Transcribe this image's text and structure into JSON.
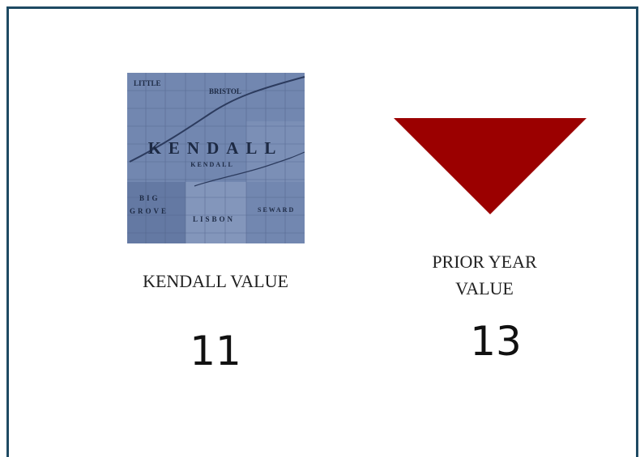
{
  "kpi": {
    "label": "KENDALL VALUE",
    "value": "11"
  },
  "prior": {
    "label_lines": [
      "PRIOR YEAR",
      "VALUE"
    ],
    "value": "13"
  },
  "map": {
    "labels": [
      "LITTLE",
      "BRISTOL",
      "KENDALL",
      "KENDALL",
      "BIG",
      "GROVE",
      "LISBON",
      "SEWARD"
    ]
  }
}
